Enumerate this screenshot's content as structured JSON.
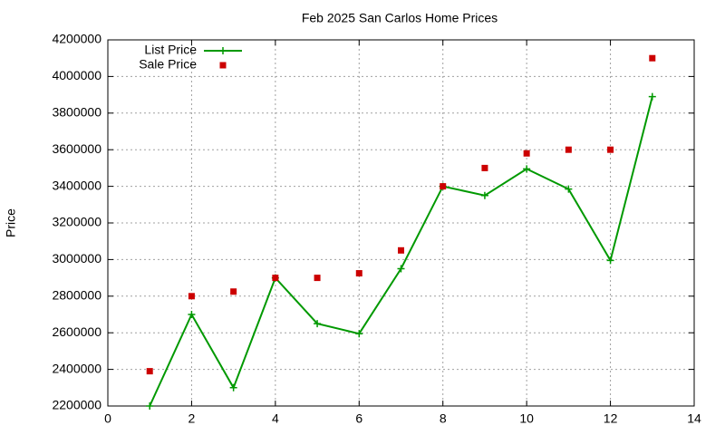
{
  "chart_data": {
    "type": "line",
    "title": "Feb 2025 San Carlos Home Prices",
    "y_label": "Price",
    "x": [
      1,
      2,
      3,
      4,
      5,
      6,
      7,
      8,
      9,
      10,
      11,
      12,
      13
    ],
    "series": [
      {
        "name": "List Price",
        "color": "#009900",
        "line": true,
        "marker": "plus",
        "values": [
          2200000,
          2700000,
          2300000,
          2900000,
          2650000,
          2595000,
          2950000,
          3400000,
          3350000,
          3495000,
          3385000,
          2995000,
          3890000
        ]
      },
      {
        "name": "Sale Price",
        "color": "#cc0000",
        "line": false,
        "marker": "square",
        "values": [
          2390000,
          2800000,
          2825000,
          2900000,
          2900000,
          2925000,
          3050000,
          3400000,
          3500000,
          3580000,
          3600000,
          3600000,
          4100000
        ]
      }
    ],
    "xlim": [
      0,
      14
    ],
    "xticks": [
      0,
      2,
      4,
      6,
      8,
      10,
      12,
      14
    ],
    "ylim": [
      2200000,
      4200000
    ],
    "yticks": [
      2200000,
      2400000,
      2600000,
      2800000,
      3000000,
      3200000,
      3400000,
      3600000,
      3800000,
      4000000,
      4200000
    ],
    "grid": true,
    "legend": "top-left"
  }
}
